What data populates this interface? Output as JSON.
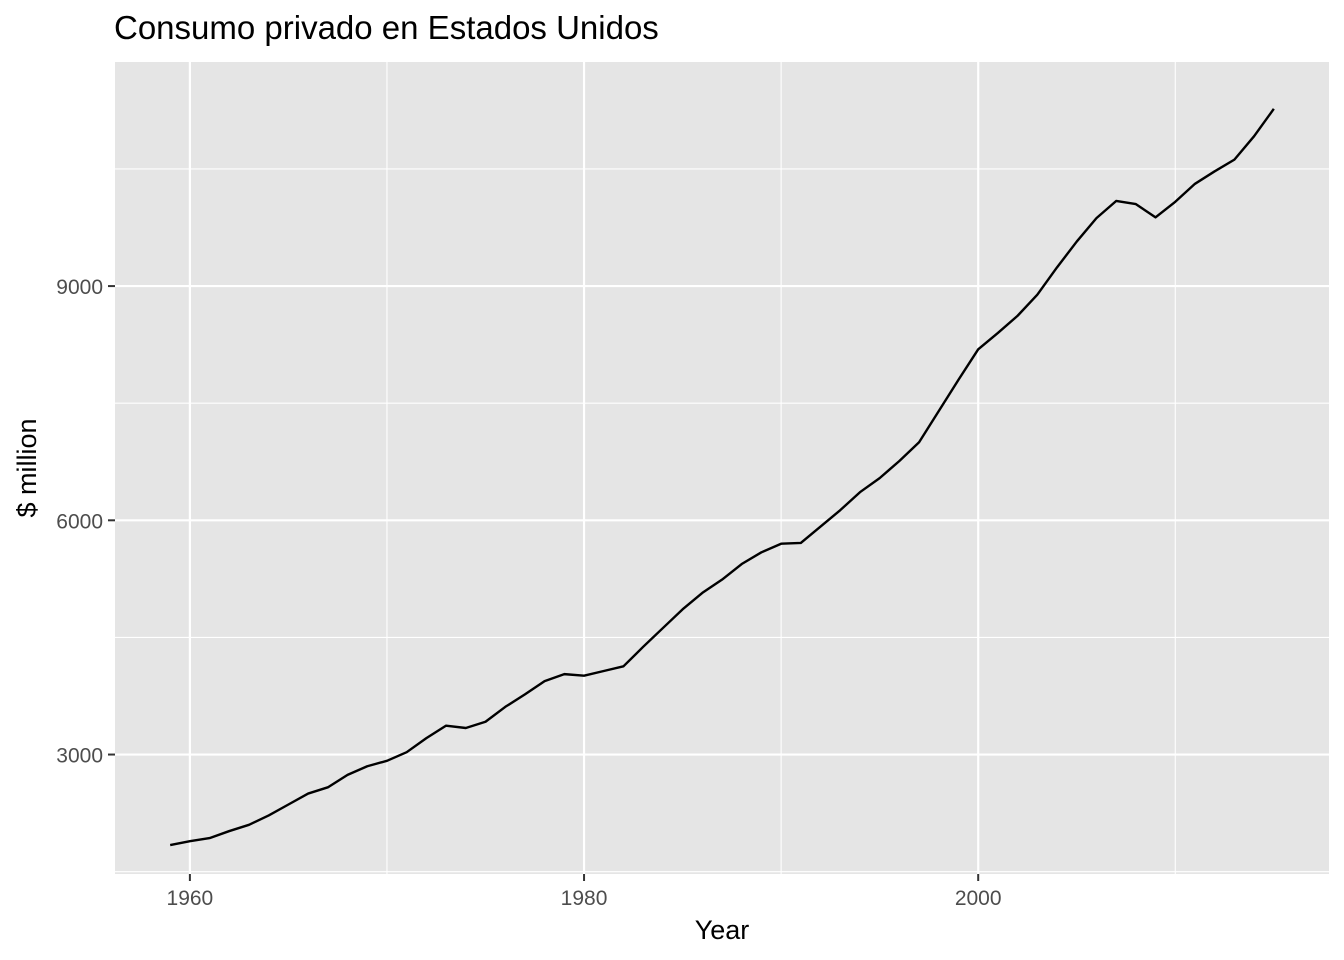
{
  "chart_data": {
    "type": "line",
    "title": "Consumo privado en Estados Unidos",
    "xlabel": "Year",
    "ylabel": "$ million",
    "xlim": [
      1956.2,
      2017.8
    ],
    "ylim": [
      1470,
      11870
    ],
    "x_major_ticks": [
      1960,
      1980,
      2000
    ],
    "x_minor_ticks": [
      1970,
      1990,
      2010
    ],
    "y_major_ticks": [
      3000,
      6000,
      9000
    ],
    "y_minor_ticks": [
      1500,
      4500,
      7500,
      10500
    ],
    "grid": true,
    "legend": "none",
    "colors": {
      "panel_background": "#e5e5e5",
      "gridline": "#ffffff",
      "line": "#000000",
      "tick_label": "#4d4d4d"
    },
    "series": [
      {
        "x": [
          1959,
          1960,
          1961,
          1962,
          1963,
          1964,
          1965,
          1966,
          1967,
          1968,
          1969,
          1970,
          1971,
          1972,
          1973,
          1974,
          1975,
          1976,
          1977,
          1978,
          1979,
          1980,
          1981,
          1982,
          1983,
          1984,
          1985,
          1986,
          1987,
          1988,
          1989,
          1990,
          1991,
          1992,
          1993,
          1994,
          1995,
          1996,
          1997,
          1998,
          1999,
          2000,
          2001,
          2002,
          2003,
          2004,
          2005,
          2006,
          2007,
          2008,
          2009,
          2010,
          2011,
          2012,
          2013,
          2014,
          2015
        ],
        "values": [
          1840,
          1890,
          1930,
          2020,
          2100,
          2220,
          2360,
          2500,
          2580,
          2740,
          2850,
          2920,
          3030,
          3210,
          3370,
          3340,
          3420,
          3610,
          3770,
          3940,
          4030,
          4010,
          4070,
          4130,
          4380,
          4620,
          4860,
          5070,
          5240,
          5440,
          5590,
          5700,
          5710,
          5920,
          6130,
          6360,
          6540,
          6760,
          7000,
          7400,
          7800,
          8190,
          8400,
          8620,
          8890,
          9240,
          9570,
          9870,
          10090,
          10050,
          9880,
          10080,
          10310,
          10470,
          10620,
          10920,
          11270
        ]
      }
    ]
  }
}
